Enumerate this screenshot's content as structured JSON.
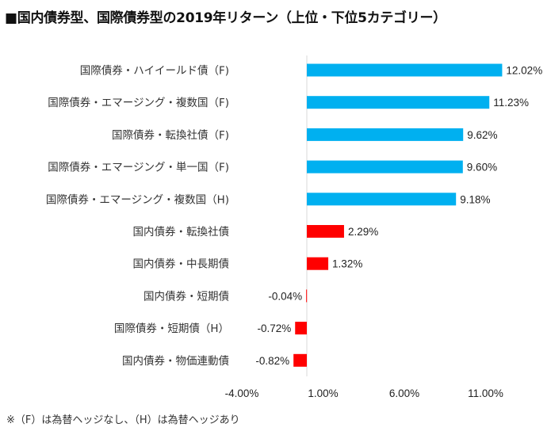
{
  "title": "■国内債券型、国際債券型の2019年リターン（上位・下位5カテゴリー）",
  "footnote": "※（F）は為替ヘッジなし、（H）は為替ヘッジあり",
  "colors": {
    "top": "#00B0F0",
    "bottom": "#FF0000",
    "axis": "#D9D9D9"
  },
  "chart_data": {
    "type": "bar",
    "orientation": "horizontal",
    "categories": [
      "国際債券・ハイイールド債（F)",
      "国際債券・エマージング・複数国（F)",
      "国際債券・転換社債（F)",
      "国際債券・エマージング・単一国（F)",
      "国際債券・エマージング・複数国（H)",
      "国内債券・転換社債",
      "国内債券・中長期債",
      "国内債券・短期債",
      "国際債券・短期債（H）",
      "国内債券・物価連動債"
    ],
    "values": [
      12.02,
      11.23,
      9.62,
      9.6,
      9.18,
      2.29,
      1.32,
      -0.04,
      -0.72,
      -0.82
    ],
    "value_labels": [
      "12.02%",
      "11.23%",
      "9.62%",
      "9.60%",
      "9.18%",
      "2.29%",
      "1.32%",
      "-0.04%",
      "-0.72%",
      "-0.82%"
    ],
    "groups": [
      "top",
      "top",
      "top",
      "top",
      "top",
      "bottom",
      "bottom",
      "bottom",
      "bottom",
      "bottom"
    ],
    "x_ticks": [
      -4.0,
      1.0,
      6.0,
      11.0
    ],
    "x_tick_labels": [
      "-4.00%",
      "1.00%",
      "6.00%",
      "11.00%"
    ],
    "xlim": [
      -4.0,
      14.0
    ],
    "grid": false,
    "legend": "none"
  }
}
